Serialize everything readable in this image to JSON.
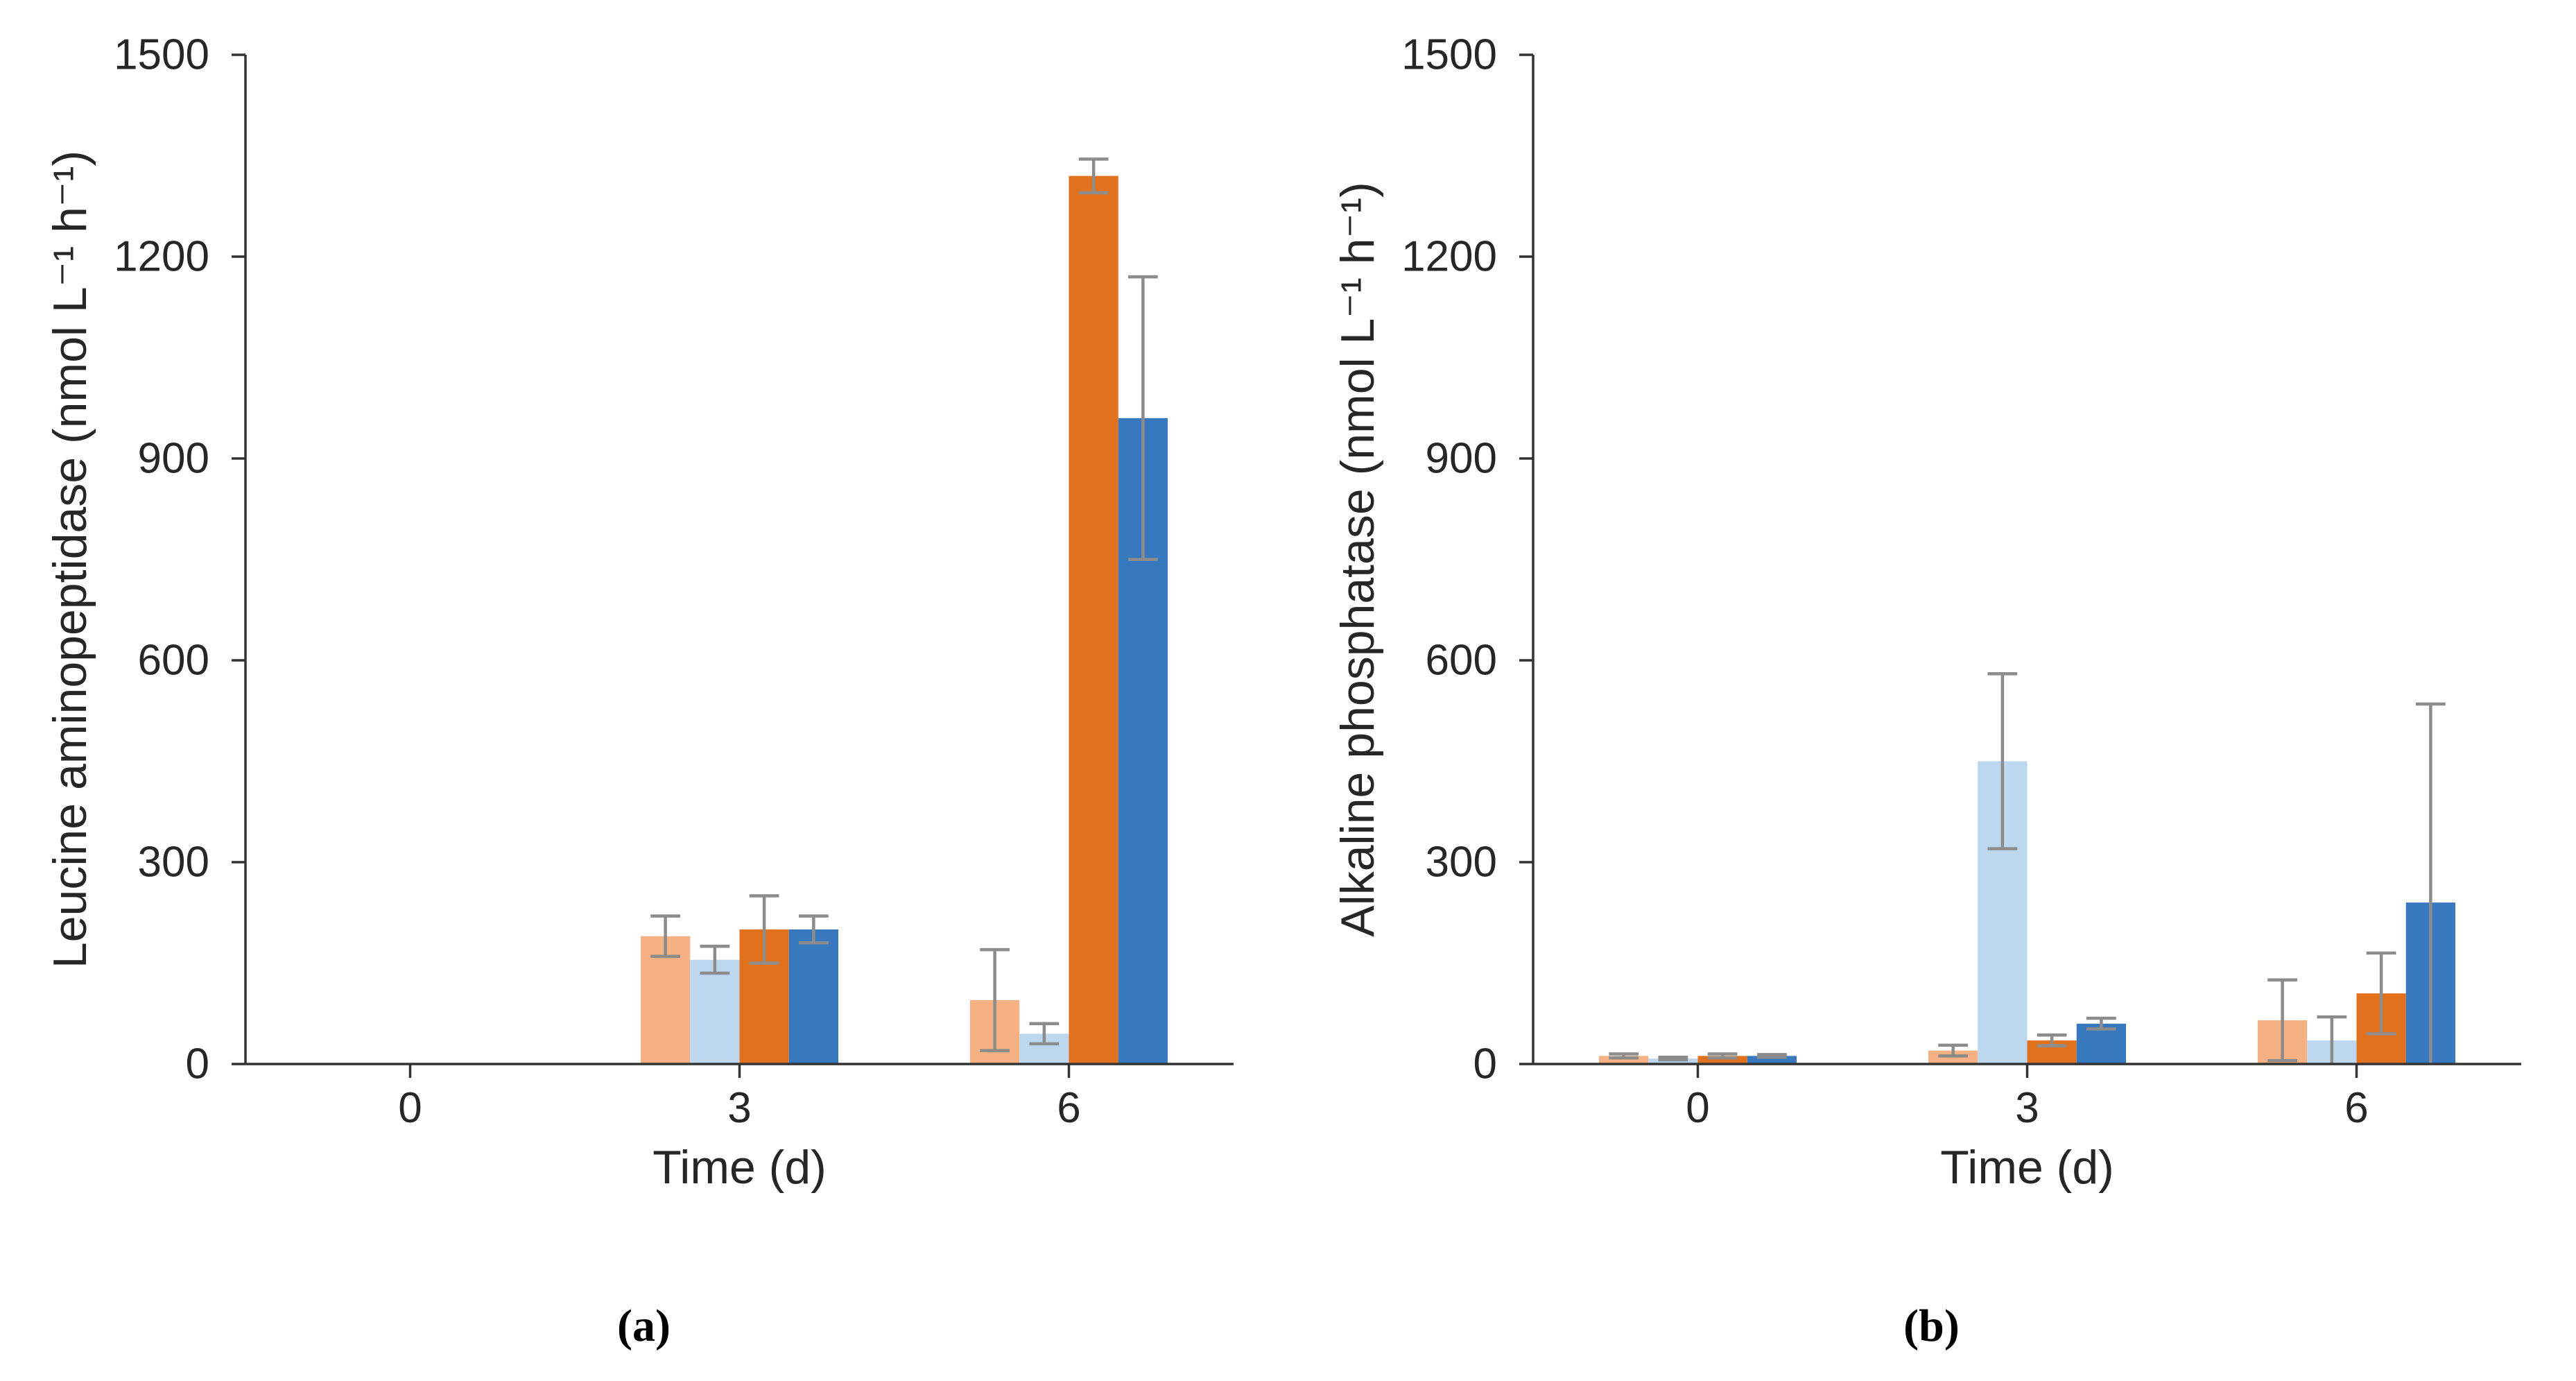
{
  "figure": {
    "background": "#FFFFFF"
  },
  "style": {
    "axis_color": "#333333",
    "text_color": "#262626",
    "error_bar_color": "#8C8C8C"
  },
  "chart_data": [
    {
      "id": "a",
      "type": "bar",
      "caption": "(a)",
      "title": "",
      "xlabel": "Time (d)",
      "ylabel": "Leucine aminopeptidase (nmol L⁻¹ h⁻¹)",
      "categories": [
        "0",
        "3",
        "6"
      ],
      "ylim": [
        0,
        1500
      ],
      "yticks": [
        0,
        300,
        600,
        900,
        1200,
        1500
      ],
      "grid": false,
      "legend": "none",
      "series": [
        {
          "name": "light-orange",
          "color": "#F5B183",
          "values": [
            0,
            190,
            95
          ],
          "errors": [
            0,
            30,
            75
          ]
        },
        {
          "name": "light-blue",
          "color": "#BDD7EE",
          "values": [
            0,
            155,
            45
          ],
          "errors": [
            0,
            20,
            15
          ]
        },
        {
          "name": "dark-orange",
          "color": "#E2711D",
          "values": [
            0,
            200,
            1320
          ],
          "errors": [
            0,
            50,
            25
          ]
        },
        {
          "name": "dark-blue",
          "color": "#3878BE",
          "values": [
            0,
            200,
            960
          ],
          "errors": [
            0,
            20,
            210
          ]
        }
      ]
    },
    {
      "id": "b",
      "type": "bar",
      "caption": "(b)",
      "title": "",
      "xlabel": "Time (d)",
      "ylabel": "Alkaline phosphatase (nmol L⁻¹ h⁻¹)",
      "categories": [
        "0",
        "3",
        "6"
      ],
      "ylim": [
        0,
        1500
      ],
      "yticks": [
        0,
        300,
        600,
        900,
        1200,
        1500
      ],
      "grid": false,
      "legend": "none",
      "series": [
        {
          "name": "light-orange",
          "color": "#F5B183",
          "values": [
            12,
            20,
            65
          ],
          "errors": [
            3,
            8,
            60
          ]
        },
        {
          "name": "light-blue",
          "color": "#BDD7EE",
          "values": [
            8,
            450,
            35
          ],
          "errors": [
            2,
            130,
            35
          ]
        },
        {
          "name": "dark-orange",
          "color": "#E2711D",
          "values": [
            12,
            35,
            105
          ],
          "errors": [
            3,
            8,
            60
          ]
        },
        {
          "name": "dark-blue",
          "color": "#3878BE",
          "values": [
            12,
            60,
            240
          ],
          "errors": [
            2,
            8,
            295
          ]
        }
      ]
    }
  ]
}
